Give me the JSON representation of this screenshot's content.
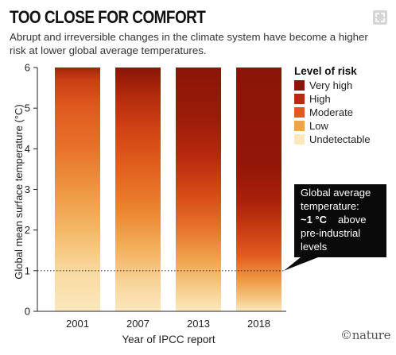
{
  "header": {
    "title": "TOO CLOSE FOR COMFORT",
    "subtitle": "Abrupt and irreversible changes in the climate system have become a higher risk at lower global average temperatures."
  },
  "icons": {
    "expand": "expand-icon"
  },
  "logo": "©nature",
  "chart_data": {
    "type": "bar",
    "categories": [
      "2001",
      "2007",
      "2013",
      "2018"
    ],
    "xlabel": "Year of IPCC report",
    "ylabel": "Global mean surface temperature (°C)",
    "ylim": [
      0,
      6
    ],
    "yticks": [
      "0",
      "1",
      "2",
      "3",
      "4",
      "5",
      "6"
    ],
    "grid": false,
    "legend": {
      "title": "Level of risk",
      "placement": "right",
      "items": [
        {
          "label": "Very high",
          "color": "#8b1508"
        },
        {
          "label": "High",
          "color": "#b8290e"
        },
        {
          "label": "Moderate",
          "color": "#e4571e"
        },
        {
          "label": "Low",
          "color": "#f0a24a"
        },
        {
          "label": "Undetectable",
          "color": "#fbe8be"
        }
      ]
    },
    "risk_profiles": [
      {
        "year": "2001",
        "stops": [
          [
            0,
            "#fbe8be"
          ],
          [
            1.0,
            "#f9d9a0"
          ],
          [
            2.0,
            "#f3b866"
          ],
          [
            3.0,
            "#ee9640"
          ],
          [
            4.0,
            "#e8722a"
          ],
          [
            5.0,
            "#e05a20"
          ],
          [
            5.7,
            "#c93e13"
          ],
          [
            6,
            "#a3240a"
          ]
        ]
      },
      {
        "year": "2007",
        "stops": [
          [
            0,
            "#fbe8be"
          ],
          [
            0.7,
            "#f8d49b"
          ],
          [
            1.6,
            "#f2ad58"
          ],
          [
            2.5,
            "#ea842f"
          ],
          [
            3.5,
            "#e2611f"
          ],
          [
            4.5,
            "#cf4214"
          ],
          [
            5.3,
            "#b12b0d"
          ],
          [
            6,
            "#8b1508"
          ]
        ]
      },
      {
        "year": "2013",
        "stops": [
          [
            0,
            "#fbe8be"
          ],
          [
            0.5,
            "#f7d091"
          ],
          [
            1.3,
            "#f0a24a"
          ],
          [
            2.1,
            "#e5702a"
          ],
          [
            2.9,
            "#d64a17"
          ],
          [
            3.8,
            "#b8290e"
          ],
          [
            4.8,
            "#9a1b09"
          ],
          [
            6,
            "#8b1508"
          ]
        ]
      },
      {
        "year": "2018",
        "stops": [
          [
            0,
            "#fbe8be"
          ],
          [
            0.3,
            "#f6c783"
          ],
          [
            0.8,
            "#ee9640"
          ],
          [
            1.4,
            "#e05a20"
          ],
          [
            2.0,
            "#c93e13"
          ],
          [
            2.7,
            "#a9210a"
          ],
          [
            3.6,
            "#921708"
          ],
          [
            6,
            "#8b1508"
          ]
        ]
      }
    ],
    "annotation": {
      "lines": [
        "Global average",
        "temperature:",
        "~1 °C",
        "above",
        "pre-industrial",
        "levels"
      ],
      "value": 1,
      "bg": "#0a0a0a",
      "fg": "#ffffff"
    }
  }
}
